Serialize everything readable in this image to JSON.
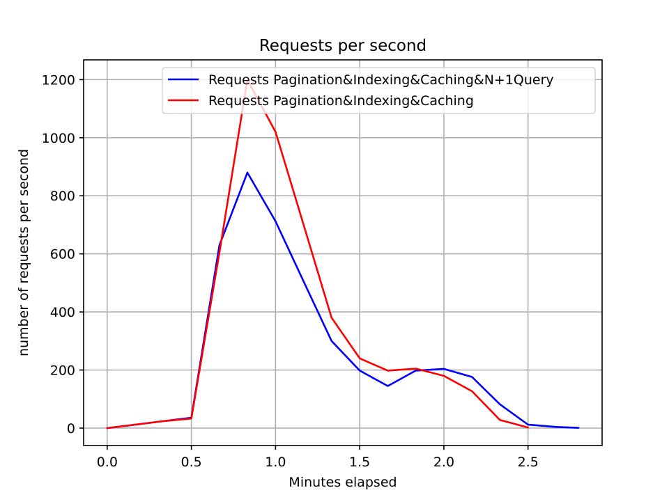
{
  "chart_data": {
    "type": "line",
    "title": "Requests per second",
    "xlabel": "Minutes elapsed",
    "ylabel": "number of requests per second",
    "xlim": [
      -0.14,
      2.94
    ],
    "ylim": [
      -60,
      1268
    ],
    "xticks": [
      0.0,
      0.5,
      1.0,
      1.5,
      2.0,
      2.5
    ],
    "xtick_labels": [
      "0.0",
      "0.5",
      "1.0",
      "1.5",
      "2.0",
      "2.5"
    ],
    "yticks": [
      0,
      200,
      400,
      600,
      800,
      1000,
      1200
    ],
    "ytick_labels": [
      "0",
      "200",
      "400",
      "600",
      "800",
      "1000",
      "1200"
    ],
    "grid": true,
    "legend_position": "upper right",
    "series": [
      {
        "name": "Requests Pagination&Indexing&Caching&N+1Query",
        "color": "#0000ff",
        "x": [
          0.0,
          0.167,
          0.333,
          0.5,
          0.667,
          0.833,
          1.0,
          1.167,
          1.333,
          1.5,
          1.667,
          1.833,
          2.0,
          2.167,
          2.333,
          2.5,
          2.667,
          2.8
        ],
        "y": [
          0,
          12,
          24,
          36,
          630,
          880,
          712,
          505,
          300,
          198,
          145,
          198,
          204,
          176,
          82,
          12,
          4,
          1
        ]
      },
      {
        "name": "Requests Pagination&Indexing&Caching",
        "color": "#ff0000",
        "x": [
          0.0,
          0.167,
          0.333,
          0.5,
          0.667,
          0.833,
          1.0,
          1.167,
          1.333,
          1.5,
          1.667,
          1.833,
          2.0,
          2.167,
          2.333,
          2.5
        ],
        "y": [
          0,
          12,
          24,
          33,
          605,
          1200,
          1020,
          700,
          380,
          240,
          198,
          205,
          180,
          127,
          28,
          2
        ]
      }
    ]
  }
}
